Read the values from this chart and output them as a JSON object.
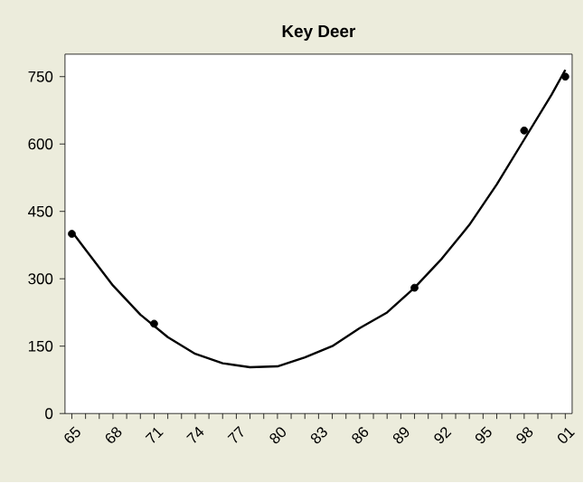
{
  "chart_data": {
    "type": "scatter",
    "title": "Key Deer",
    "xlim": [
      1964.5,
      2001.5
    ],
    "ylim": [
      0,
      800
    ],
    "yticks": [
      0,
      150,
      300,
      450,
      600,
      750
    ],
    "xticks": [
      {
        "value": 1965,
        "label": "65"
      },
      {
        "value": 1966,
        "label": null
      },
      {
        "value": 1967,
        "label": null
      },
      {
        "value": 1968,
        "label": "68"
      },
      {
        "value": 1969,
        "label": null
      },
      {
        "value": 1970,
        "label": null
      },
      {
        "value": 1971,
        "label": "71"
      },
      {
        "value": 1972,
        "label": null
      },
      {
        "value": 1973,
        "label": null
      },
      {
        "value": 1974,
        "label": "74"
      },
      {
        "value": 1975,
        "label": null
      },
      {
        "value": 1976,
        "label": null
      },
      {
        "value": 1977,
        "label": "77"
      },
      {
        "value": 1978,
        "label": null
      },
      {
        "value": 1979,
        "label": null
      },
      {
        "value": 1980,
        "label": "80"
      },
      {
        "value": 1981,
        "label": null
      },
      {
        "value": 1982,
        "label": null
      },
      {
        "value": 1983,
        "label": "83"
      },
      {
        "value": 1984,
        "label": null
      },
      {
        "value": 1985,
        "label": null
      },
      {
        "value": 1986,
        "label": "86"
      },
      {
        "value": 1987,
        "label": null
      },
      {
        "value": 1988,
        "label": null
      },
      {
        "value": 1989,
        "label": "89"
      },
      {
        "value": 1990,
        "label": null
      },
      {
        "value": 1991,
        "label": null
      },
      {
        "value": 1992,
        "label": "92"
      },
      {
        "value": 1993,
        "label": null
      },
      {
        "value": 1994,
        "label": null
      },
      {
        "value": 1995,
        "label": "95"
      },
      {
        "value": 1996,
        "label": null
      },
      {
        "value": 1997,
        "label": null
      },
      {
        "value": 1998,
        "label": "98"
      },
      {
        "value": 1999,
        "label": null
      },
      {
        "value": 2000,
        "label": null
      },
      {
        "value": 2001,
        "label": "01"
      }
    ],
    "series": [
      {
        "color": "#000000",
        "marker": "circle",
        "x": [
          1965,
          1971,
          1990,
          1998,
          2001
        ],
        "values": [
          400,
          200,
          280,
          630,
          750
        ]
      },
      {
        "type": "line",
        "color": "#000000",
        "marker": "none",
        "line_style": "solid",
        "x": [
          1965,
          1966,
          1968,
          1970,
          1972,
          1974,
          1976,
          1978,
          1980,
          1982,
          1984,
          1986,
          1988,
          1990,
          1992,
          1994,
          1996,
          1998,
          2000,
          2001
        ],
        "values": [
          405,
          365,
          285,
          220,
          170,
          133,
          112,
          103,
          105,
          125,
          150,
          190,
          225,
          280,
          345,
          420,
          510,
          610,
          710,
          765
        ]
      }
    ],
    "grid": false
  }
}
